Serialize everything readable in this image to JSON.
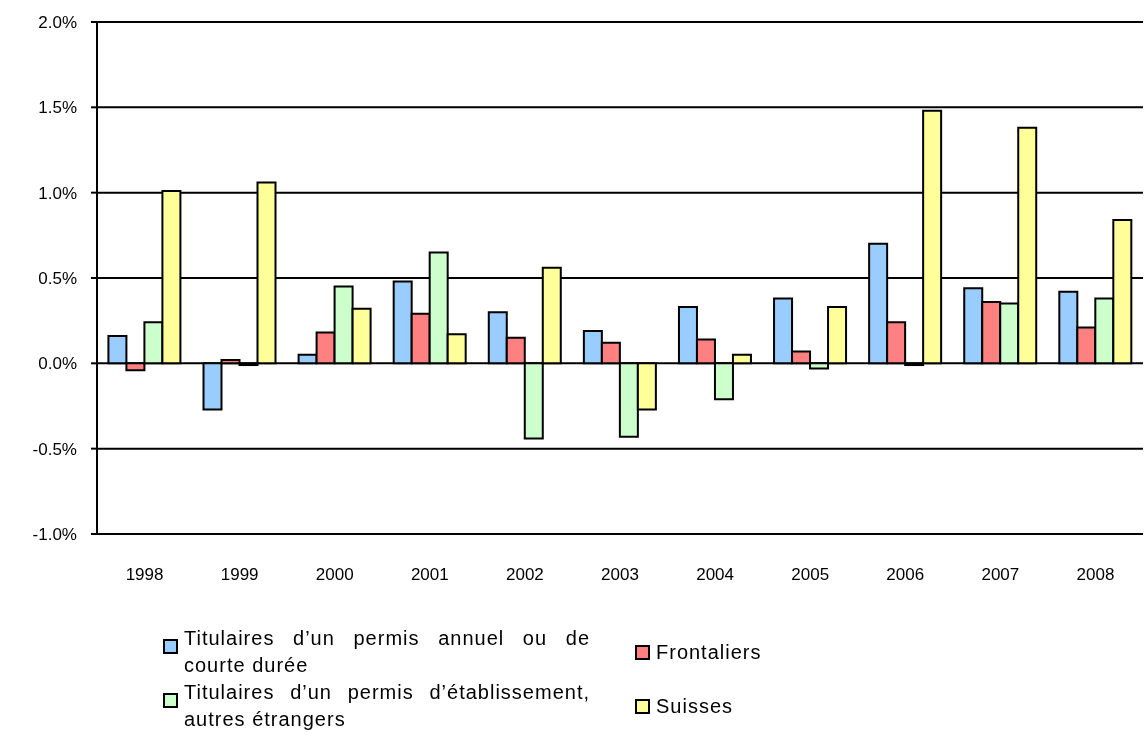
{
  "chart_data": {
    "type": "bar",
    "categories": [
      "1998",
      "1999",
      "2000",
      "2001",
      "2002",
      "2003",
      "2004",
      "2005",
      "2006",
      "2007",
      "2008"
    ],
    "series": [
      {
        "name": "Titulaires d’un permis annuel ou de courte durée",
        "color": "#99ccff",
        "values": [
          0.16,
          -0.27,
          0.05,
          0.48,
          0.3,
          0.19,
          0.33,
          0.38,
          0.7,
          0.44,
          0.42
        ]
      },
      {
        "name": "Frontaliers",
        "color": "#ff8080",
        "values": [
          -0.04,
          0.02,
          0.18,
          0.29,
          0.15,
          0.12,
          0.14,
          0.07,
          0.24,
          0.36,
          0.21
        ]
      },
      {
        "name": "Titulaires d’un permis d’établissement, autres étrangers",
        "color": "#ccffcc",
        "values": [
          0.24,
          -0.01,
          0.45,
          0.65,
          -0.44,
          -0.43,
          -0.21,
          -0.03,
          -0.01,
          0.35,
          0.38
        ]
      },
      {
        "name": "Suisses",
        "color": "#ffff99",
        "values": [
          1.01,
          1.06,
          0.32,
          0.17,
          0.56,
          -0.27,
          0.05,
          0.33,
          1.48,
          1.38,
          0.84
        ]
      }
    ],
    "ylim": [
      -1,
      2
    ],
    "yticks": [
      {
        "value": -1,
        "label": "-1.0%"
      },
      {
        "value": -0.5,
        "label": "-0.5%"
      },
      {
        "value": 0,
        "label": "0.0%"
      },
      {
        "value": 0.5,
        "label": "0.5%"
      },
      {
        "value": 1,
        "label": "1.0%"
      },
      {
        "value": 1.5,
        "label": "1.5%"
      },
      {
        "value": 2,
        "label": "2.0%"
      }
    ],
    "grid": "y",
    "legend": "bottom"
  }
}
